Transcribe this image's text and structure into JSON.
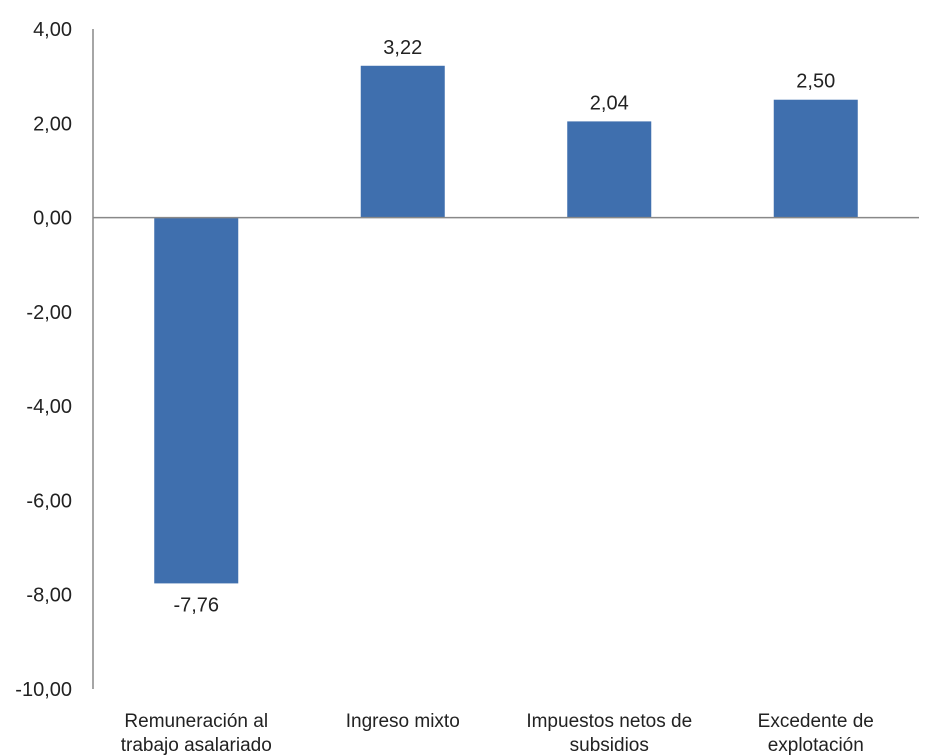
{
  "chart_data": {
    "type": "bar",
    "categories": [
      [
        "Remuneración al",
        "trabajo asalariado"
      ],
      [
        "Ingreso mixto"
      ],
      [
        "Impuestos netos de",
        "subsidios"
      ],
      [
        "Excedente de",
        "explotación"
      ]
    ],
    "values": [
      -7.76,
      3.22,
      2.04,
      2.5
    ],
    "data_labels": [
      "-7,76",
      "3,22",
      "2,04",
      "2,50"
    ],
    "ylim": [
      -10,
      4
    ],
    "yticks": [
      4,
      2,
      0,
      -2,
      -4,
      -6,
      -8,
      -10
    ],
    "ytick_labels": [
      "4,00",
      "2,00",
      "0,00",
      "-2,00",
      "-4,00",
      "-6,00",
      "-8,00",
      "-10,00"
    ],
    "bar_color": "#3f6fae",
    "axis_color": "#888888",
    "grid": false,
    "legend": "none",
    "title": "",
    "xlabel": "",
    "ylabel": ""
  }
}
